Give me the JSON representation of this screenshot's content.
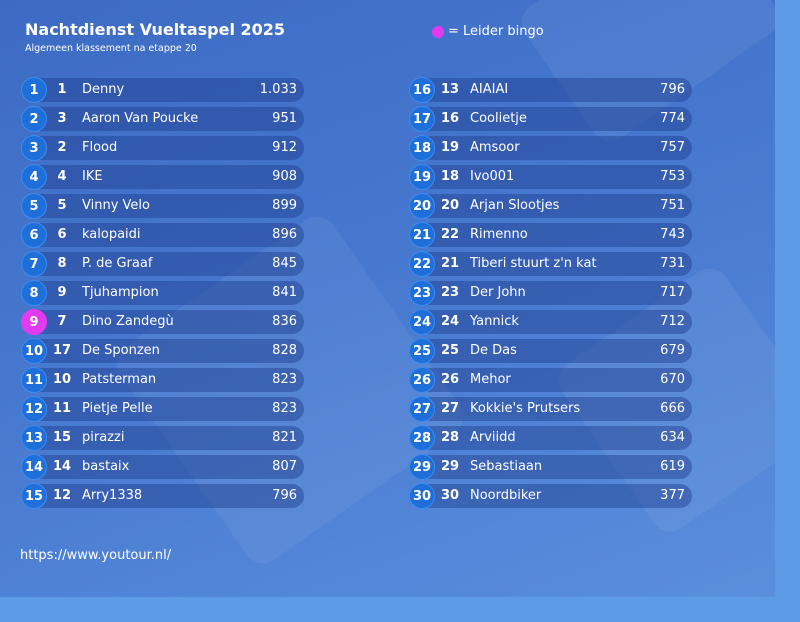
{
  "header": {
    "title": "Nachtdienst Vueltaspel 2025",
    "subtitle": "Algemeen klassement na etappe 20"
  },
  "legend": {
    "label": "= Leider bingo",
    "color": "#e13bf0"
  },
  "rows": [
    {
      "rank": 1,
      "previous": 1,
      "name": "Denny",
      "points": "1.033"
    },
    {
      "rank": 2,
      "previous": 3,
      "name": "Aaron Van Poucke",
      "points": 951
    },
    {
      "rank": 3,
      "previous": 2,
      "name": "Flood",
      "points": 912
    },
    {
      "rank": 4,
      "previous": 4,
      "name": "IKE",
      "points": 908
    },
    {
      "rank": 5,
      "previous": 5,
      "name": "Vinny Velo",
      "points": 899
    },
    {
      "rank": 6,
      "previous": 6,
      "name": "kalopaidi",
      "points": 896
    },
    {
      "rank": 7,
      "previous": 8,
      "name": "P. de Graaf",
      "points": 845
    },
    {
      "rank": 8,
      "previous": 9,
      "name": "Tjuhampion",
      "points": 841
    },
    {
      "rank": 9,
      "previous": 7,
      "name": "Dino Zandegù",
      "points": 836,
      "bingo": true
    },
    {
      "rank": 10,
      "previous": 17,
      "name": "De Sponzen",
      "points": 828
    },
    {
      "rank": 11,
      "previous": 10,
      "name": "Patsterman",
      "points": 823
    },
    {
      "rank": 12,
      "previous": 11,
      "name": "Pietje Pelle",
      "points": 823
    },
    {
      "rank": 13,
      "previous": 15,
      "name": "pirazzi",
      "points": 821
    },
    {
      "rank": 14,
      "previous": 14,
      "name": "bastaix",
      "points": 807
    },
    {
      "rank": 15,
      "previous": 12,
      "name": "Arry1338",
      "points": 796
    },
    {
      "rank": 16,
      "previous": 13,
      "name": "AIAIAI",
      "points": 796
    },
    {
      "rank": 17,
      "previous": 16,
      "name": "Coolietje",
      "points": 774
    },
    {
      "rank": 18,
      "previous": 19,
      "name": "Amsoor",
      "points": 757
    },
    {
      "rank": 19,
      "previous": 18,
      "name": "Ivo001",
      "points": 753
    },
    {
      "rank": 20,
      "previous": 20,
      "name": "Arjan Slootjes",
      "points": 751
    },
    {
      "rank": 21,
      "previous": 22,
      "name": "Rimenno",
      "points": 743
    },
    {
      "rank": 22,
      "previous": 21,
      "name": "Tiberi stuurt z'n kat",
      "points": 731
    },
    {
      "rank": 23,
      "previous": 23,
      "name": "Der John",
      "points": 717
    },
    {
      "rank": 24,
      "previous": 24,
      "name": "Yannick",
      "points": 712
    },
    {
      "rank": 25,
      "previous": 25,
      "name": "De Das",
      "points": 679
    },
    {
      "rank": 26,
      "previous": 26,
      "name": "Mehor",
      "points": 670
    },
    {
      "rank": 27,
      "previous": 27,
      "name": "Kokkie's Prutsers",
      "points": 666
    },
    {
      "rank": 28,
      "previous": 28,
      "name": "Arviidd",
      "points": 634
    },
    {
      "rank": 29,
      "previous": 29,
      "name": "Sebastiaan",
      "points": 619
    },
    {
      "rank": 30,
      "previous": 30,
      "name": "Noordbiker",
      "points": 377
    }
  ],
  "footer": {
    "url": "https://www.youtour.nl/"
  }
}
